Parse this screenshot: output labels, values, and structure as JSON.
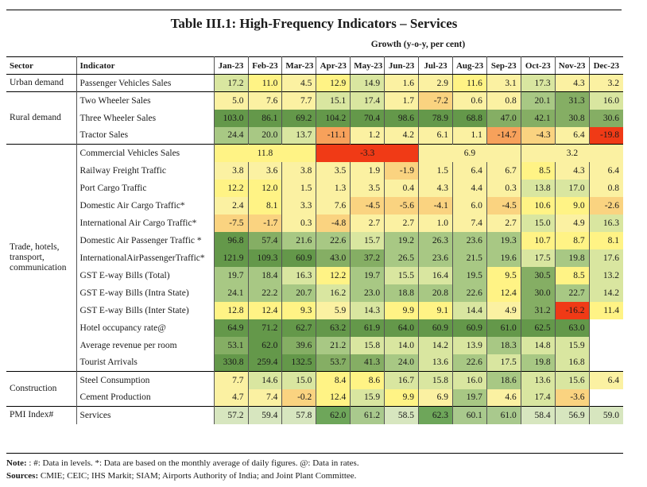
{
  "title": "Table III.1: High-Frequency Indicators – Services",
  "subheader": "Growth (y-o-y, per cent)",
  "header": {
    "sector": "Sector",
    "indicator": "Indicator",
    "months": [
      "Jan-23",
      "Feb-23",
      "Mar-23",
      "Apr-23",
      "May-23",
      "Jun-23",
      "Jul-23",
      "Aug-23",
      "Sep-23",
      "Oct-23",
      "Nov-23",
      "Dec-23"
    ]
  },
  "groups": [
    {
      "sector": "Urban demand",
      "rows": [
        {
          "indicator": "Passenger Vehicles Sales",
          "values": [
            "17.2",
            "11.0",
            "4.5",
            "12.9",
            "14.9",
            "1.6",
            "2.9",
            "11.6",
            "3.1",
            "17.3",
            "4.3",
            "3.2"
          ]
        }
      ]
    },
    {
      "sector": "Rural demand",
      "rows": [
        {
          "indicator": "Two Wheeler Sales",
          "values": [
            "5.0",
            "7.6",
            "7.7",
            "15.1",
            "17.4",
            "1.7",
            "-7.2",
            "0.6",
            "0.8",
            "20.1",
            "31.3",
            "16.0"
          ]
        },
        {
          "indicator": "Three Wheeler Sales",
          "values": [
            "103.0",
            "86.1",
            "69.2",
            "104.2",
            "70.4",
            "98.6",
            "78.9",
            "68.8",
            "47.0",
            "42.1",
            "30.8",
            "30.6"
          ]
        },
        {
          "indicator": "Tractor Sales",
          "values": [
            "24.4",
            "20.0",
            "13.7",
            "-11.1",
            "1.2",
            "4.2",
            "6.1",
            "1.1",
            "-14.7",
            "-4.3",
            "6.4",
            "-19.8"
          ]
        }
      ]
    },
    {
      "sector": "Trade, hotels, transport, communication",
      "rows": [
        {
          "indicator": "Commercial Vehicles Sales",
          "merged": [
            "11.8",
            "-3.3",
            "6.9",
            "3.2"
          ]
        },
        {
          "indicator": "Railway Freight Traffic",
          "values": [
            "3.8",
            "3.6",
            "3.8",
            "3.5",
            "1.9",
            "-1.9",
            "1.5",
            "6.4",
            "6.7",
            "8.5",
            "4.3",
            "6.4"
          ]
        },
        {
          "indicator": "Port Cargo Traffic",
          "values": [
            "12.2",
            "12.0",
            "1.5",
            "1.3",
            "3.5",
            "0.4",
            "4.3",
            "4.4",
            "0.3",
            "13.8",
            "17.0",
            "0.8"
          ]
        },
        {
          "indicator": "Domestic Air Cargo Traffic*",
          "values": [
            "2.4",
            "8.1",
            "3.3",
            "7.6",
            "-4.5",
            "-5.6",
            "-4.1",
            "6.0",
            "-4.5",
            "10.6",
            "9.0",
            "-2.6"
          ]
        },
        {
          "indicator": "International Air Cargo Traffic*",
          "values": [
            "-7.5",
            "-1.7",
            "0.3",
            "-4.8",
            "2.7",
            "2.7",
            "1.0",
            "7.4",
            "2.7",
            "15.0",
            "4.9",
            "16.3"
          ]
        },
        {
          "indicator": "Domestic Air Passenger Traffic *",
          "values": [
            "96.8",
            "57.4",
            "21.6",
            "22.6",
            "15.7",
            "19.2",
            "26.3",
            "23.6",
            "19.3",
            "10.7",
            "8.7",
            "8.1"
          ]
        },
        {
          "indicator": "InternationalAirPassengerTraffic*",
          "values": [
            "121.9",
            "109.3",
            "60.9",
            "43.0",
            "37.2",
            "26.5",
            "23.6",
            "21.5",
            "19.6",
            "17.5",
            "19.8",
            "17.6"
          ]
        },
        {
          "indicator": "GST E-way Bills (Total)",
          "values": [
            "19.7",
            "18.4",
            "16.3",
            "12.2",
            "19.7",
            "15.5",
            "16.4",
            "19.5",
            "9.5",
            "30.5",
            "8.5",
            "13.2"
          ]
        },
        {
          "indicator": "GST E-way Bills (Intra State)",
          "values": [
            "24.1",
            "22.2",
            "20.7",
            "16.2",
            "23.0",
            "18.8",
            "20.8",
            "22.6",
            "12.4",
            "30.0",
            "22.7",
            "14.2"
          ]
        },
        {
          "indicator": "GST E-way Bills (Inter State)",
          "values": [
            "12.8",
            "12.4",
            "9.3",
            "5.9",
            "14.3",
            "9.9",
            "9.1",
            "14.4",
            "4.9",
            "31.2",
            "-16.2",
            "11.4"
          ]
        },
        {
          "indicator": "Hotel occupancy rate@",
          "values": [
            "64.9",
            "71.2",
            "62.7",
            "63.2",
            "61.9",
            "64.0",
            "60.9",
            "60.9",
            "61.0",
            "62.5",
            "63.0",
            ""
          ]
        },
        {
          "indicator": "Average revenue per room",
          "values": [
            "53.1",
            "62.0",
            "39.6",
            "21.2",
            "15.8",
            "14.0",
            "14.2",
            "13.9",
            "18.3",
            "14.8",
            "15.9",
            ""
          ]
        },
        {
          "indicator": "Tourist Arrivals",
          "values": [
            "330.8",
            "259.4",
            "132.5",
            "53.7",
            "41.3",
            "24.0",
            "13.6",
            "22.6",
            "17.5",
            "19.8",
            "16.8",
            ""
          ]
        }
      ]
    },
    {
      "sector": "Construction",
      "rows": [
        {
          "indicator": "Steel Consumption",
          "values": [
            "7.7",
            "14.6",
            "15.0",
            "8.4",
            "8.6",
            "16.7",
            "15.8",
            "16.0",
            "18.6",
            "13.6",
            "15.6",
            "6.4"
          ]
        },
        {
          "indicator": "Cement Production",
          "values": [
            "4.7",
            "7.4",
            "-0.2",
            "12.4",
            "15.9",
            "9.9",
            "6.9",
            "19.7",
            "4.6",
            "17.4",
            "-3.6",
            ""
          ]
        }
      ]
    },
    {
      "sector": "PMI Index#",
      "rows": [
        {
          "indicator": "Services",
          "values": [
            "57.2",
            "59.4",
            "57.8",
            "62.0",
            "61.2",
            "58.5",
            "62.3",
            "60.1",
            "61.0",
            "58.4",
            "56.9",
            "59.0"
          ]
        }
      ]
    }
  ],
  "note": {
    "label": "Note:",
    "text": " : #: Data in levels.  *: Data are based on the monthly average of daily figures.  @: Data in rates."
  },
  "sources": {
    "label": "Sources:",
    "text": " CMIE; CEIC; IHS Markit; SIAM; Airports Authority of India; and Joint Plant Committee."
  },
  "colors": {
    "strong_red": "#f03a16",
    "orange": "#f7a15b",
    "light_orange": "#fad380",
    "yellow": "#fff385",
    "light_yellow": "#fbf1a2",
    "light_green": "#d9e6a0",
    "mid_green": "#a8c884",
    "green": "#85ae64",
    "dark_green": "#64984a",
    "pmi_light": "#d7e6bf",
    "pmi_mid": "#a9c98d",
    "pmi_dark": "#6ea65a"
  }
}
